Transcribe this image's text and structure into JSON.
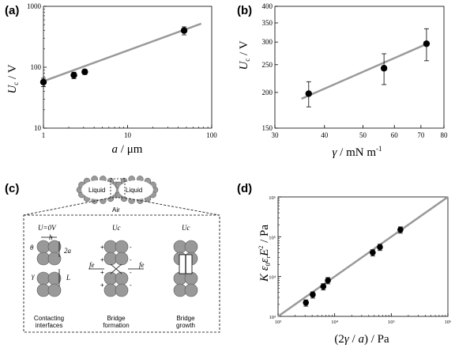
{
  "chart_data": [
    {
      "panel": "(a)",
      "type": "scatter",
      "xscale": "log",
      "yscale": "log",
      "xlim": [
        1,
        100
      ],
      "ylim": [
        10,
        1000
      ],
      "xticks": [
        "1",
        "10",
        "100"
      ],
      "yticks": [
        "10",
        "100",
        "1000"
      ],
      "xlabel": "a / μm",
      "ylabel": "U_c / V",
      "points": [
        {
          "x": 1.0,
          "y": 57,
          "err": 9
        },
        {
          "x": 2.3,
          "y": 74,
          "err": 9
        },
        {
          "x": 3.1,
          "y": 84,
          "err": 8
        },
        {
          "x": 47,
          "y": 400,
          "err": 60
        }
      ],
      "fit": [
        [
          0.97,
          58
        ],
        [
          75,
          520
        ]
      ],
      "grid": false
    },
    {
      "panel": "(b)",
      "type": "scatter",
      "xscale": "log",
      "yscale": "log",
      "xlim": [
        30,
        80
      ],
      "ylim": [
        150,
        400
      ],
      "xticks": [
        "30",
        "40",
        "50",
        "60",
        "70",
        "80"
      ],
      "yticks": [
        "150",
        "200",
        "250",
        "300",
        "350",
        "400"
      ],
      "xlabel": "γ / mN m⁻¹",
      "ylabel": "U_c / V",
      "points": [
        {
          "x": 36.5,
          "y": 198,
          "err": 20
        },
        {
          "x": 56.5,
          "y": 243,
          "err": 30
        },
        {
          "x": 72.3,
          "y": 296,
          "err": 38
        }
      ],
      "fit": [
        [
          35,
          190
        ],
        [
          73,
          297
        ]
      ],
      "grid": false
    },
    {
      "panel": "(d)",
      "type": "scatter",
      "xscale": "log",
      "yscale": "log",
      "xlim": [
        1000,
        1000000
      ],
      "ylim": [
        1000,
        1000000
      ],
      "xticks": [
        "10³",
        "10⁴",
        "10⁵",
        "10⁶"
      ],
      "yticks": [
        "10³",
        "10⁴",
        "10⁵",
        "10⁶"
      ],
      "xlabel": "(2γ / a) / Pa",
      "ylabel": "K ε₀ εᵣ E² / Pa",
      "points": [
        {
          "x": 3100,
          "y": 2200
        },
        {
          "x": 4100,
          "y": 3500
        },
        {
          "x": 6300,
          "y": 5600
        },
        {
          "x": 7600,
          "y": 8000
        },
        {
          "x": 47000,
          "y": 40000
        },
        {
          "x": 63000,
          "y": 55000
        },
        {
          "x": 145000,
          "y": 150000
        }
      ],
      "fit": [
        [
          1000,
          1000
        ],
        [
          1000000,
          1000000
        ]
      ],
      "grid": false
    }
  ],
  "panels": {
    "a": {
      "label": "(a)"
    },
    "b": {
      "label": "(b)"
    },
    "c": {
      "label": "(c)"
    },
    "d": {
      "label": "(d)"
    }
  },
  "diagram": {
    "liquid_left": "Liquid",
    "liquid_right": "Liquid",
    "air": "Air",
    "col1_title": "U=0V",
    "col2_title": "Uc",
    "col3_title": "Uc",
    "sym_h": "h",
    "sym_2a": "2a",
    "sym_theta": "θ",
    "sym_gamma": "γ",
    "sym_L": "L",
    "sym_fe_left": "fe",
    "sym_fe_right": "fe",
    "caption1_line1": "Contacting",
    "caption1_line2": "interfaces",
    "caption2_line1": "Bridge",
    "caption2_line2": "formation",
    "caption3_line1": "Bridge",
    "caption3_line2": "growth"
  },
  "colors": {
    "fit_line": "#999999",
    "marker": "#000000",
    "sphere": "#999999",
    "sphere_stroke": "#555555"
  }
}
